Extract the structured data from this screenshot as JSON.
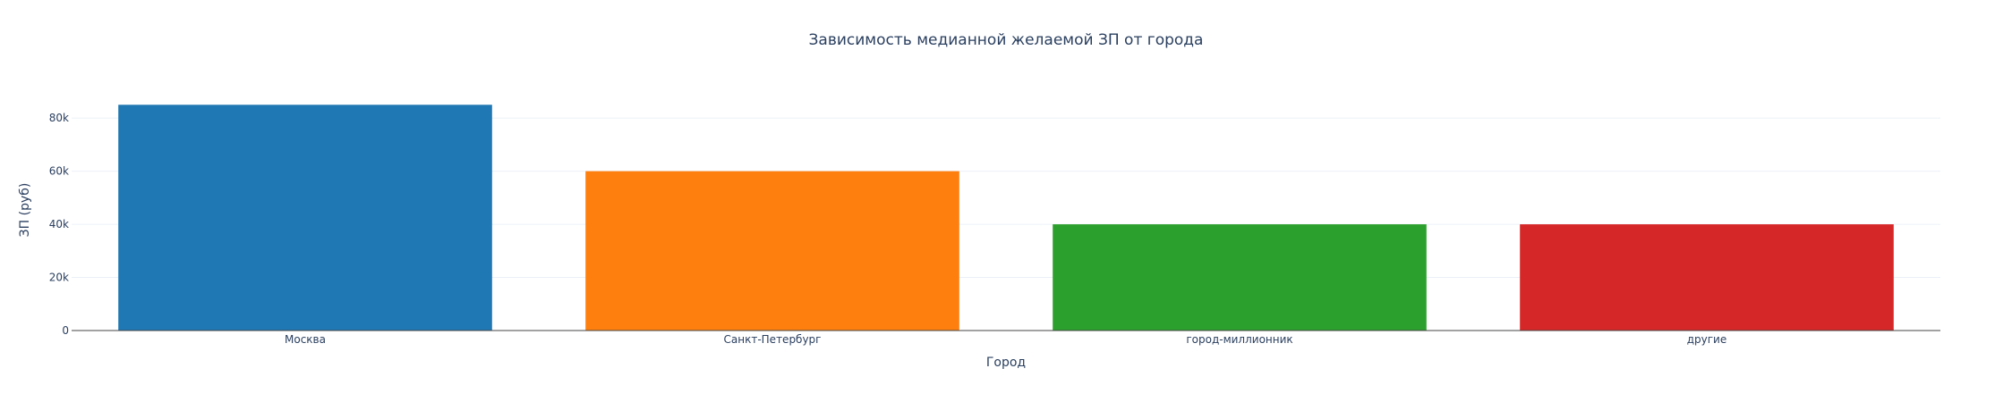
{
  "chart_data": {
    "type": "bar",
    "title": "Зависимость медианной желаемой ЗП от города",
    "xlabel": "Город",
    "ylabel": "ЗП (руб)",
    "categories": [
      "Москва",
      "Санкт-Петербург",
      "город-миллионник",
      "другие"
    ],
    "values": [
      85000,
      60000,
      40000,
      40000
    ],
    "colors": [
      "#1f77b4",
      "#ff7f0e",
      "#2ca02c",
      "#d62728"
    ],
    "ylim": [
      0,
      89474
    ],
    "yticks": [
      0,
      20000,
      40000,
      60000,
      80000
    ],
    "ytick_labels": [
      "0",
      "20k",
      "40k",
      "60k",
      "80k"
    ],
    "grid": true,
    "legend": false
  }
}
